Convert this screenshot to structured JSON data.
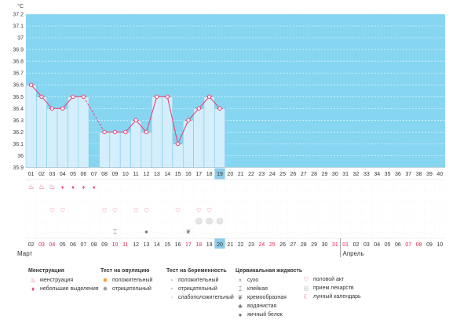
{
  "chart_data": {
    "type": "line",
    "unit_label": "°C",
    "ylim": [
      35.9,
      37.2
    ],
    "y_ticks": [
      "35.9",
      "36",
      "36.1",
      "36.2",
      "36.3",
      "36.4",
      "36.5",
      "36.6",
      "36.7",
      "36.8",
      "36.9",
      "37",
      "37.1",
      "37.2"
    ],
    "x_days": [
      "01",
      "02",
      "03",
      "04",
      "05",
      "06",
      "07",
      "08",
      "09",
      "10",
      "11",
      "12",
      "13",
      "14",
      "15",
      "16",
      "17",
      "18",
      "19",
      "20",
      "21",
      "22",
      "23",
      "24",
      "25",
      "26",
      "27",
      "28",
      "29",
      "30",
      "31",
      "32",
      "33",
      "34",
      "35",
      "36",
      "37",
      "38",
      "39",
      "40"
    ],
    "current_day": "19",
    "temperatures": [
      36.6,
      36.5,
      36.4,
      36.4,
      36.5,
      36.5,
      null,
      36.2,
      36.2,
      36.2,
      36.3,
      36.2,
      36.5,
      36.5,
      36.1,
      36.3,
      36.4,
      36.5,
      36.4
    ],
    "dashed_segments": [
      [
        6,
        8
      ]
    ],
    "date_labels": [
      "02",
      "03",
      "04",
      "05",
      "06",
      "07",
      "08",
      "09",
      "10",
      "11",
      "12",
      "13",
      "14",
      "15",
      "16",
      "17",
      "18",
      "19",
      "20",
      "21",
      "22",
      "23",
      "24",
      "25",
      "26",
      "27",
      "28",
      "29",
      "30",
      "31",
      "01",
      "02",
      "03",
      "04",
      "05",
      "06",
      "07",
      "08",
      "09",
      "10"
    ],
    "date_red": [
      false,
      true,
      true,
      false,
      false,
      false,
      false,
      false,
      true,
      true,
      false,
      false,
      false,
      false,
      false,
      true,
      true,
      false,
      false,
      false,
      false,
      false,
      true,
      true,
      false,
      false,
      false,
      false,
      false,
      true,
      true,
      false,
      false,
      false,
      false,
      false,
      true,
      true,
      false,
      false
    ],
    "highlight_date": "20",
    "month_labels": [
      "Март",
      "Апрель"
    ],
    "menstruation": [
      "heavy",
      "heavy",
      "heavy",
      "light",
      "light",
      "light",
      "light"
    ],
    "heart_days": [
      3,
      4,
      8,
      9,
      11,
      12,
      15,
      17,
      18
    ],
    "pregnancy_neg_days": [
      17,
      18,
      19
    ],
    "cervical_sticky_day": 9,
    "cervical_water_day": 12,
    "cervical_creamy_day": 16
  },
  "legend": {
    "menstruation": {
      "title": "Менструация",
      "items": [
        "менструация",
        "небольшие выделения"
      ]
    },
    "ovulation": {
      "title": "Тест на овуляцию",
      "items": [
        "положительный",
        "отрицательный"
      ]
    },
    "pregnancy": {
      "title": "Тест на беременность",
      "items": [
        "положительный",
        "отрицательный",
        "слабоположительный"
      ]
    },
    "cervical": {
      "title": "Цервикальная жидкость",
      "items": [
        "сухо",
        "клейкая",
        "кремообразная",
        "водянистая",
        "яичный белок"
      ]
    },
    "other": {
      "items": [
        "половой акт",
        "прием лекарств",
        "лунный календарь"
      ]
    }
  },
  "colors": {
    "sky": "#86d6f2",
    "bar": "#d4eefb",
    "bar_stroke": "#6fc4ea",
    "line": "#e2477c",
    "today": "#8ecde9",
    "red_text": "#e0234e"
  }
}
